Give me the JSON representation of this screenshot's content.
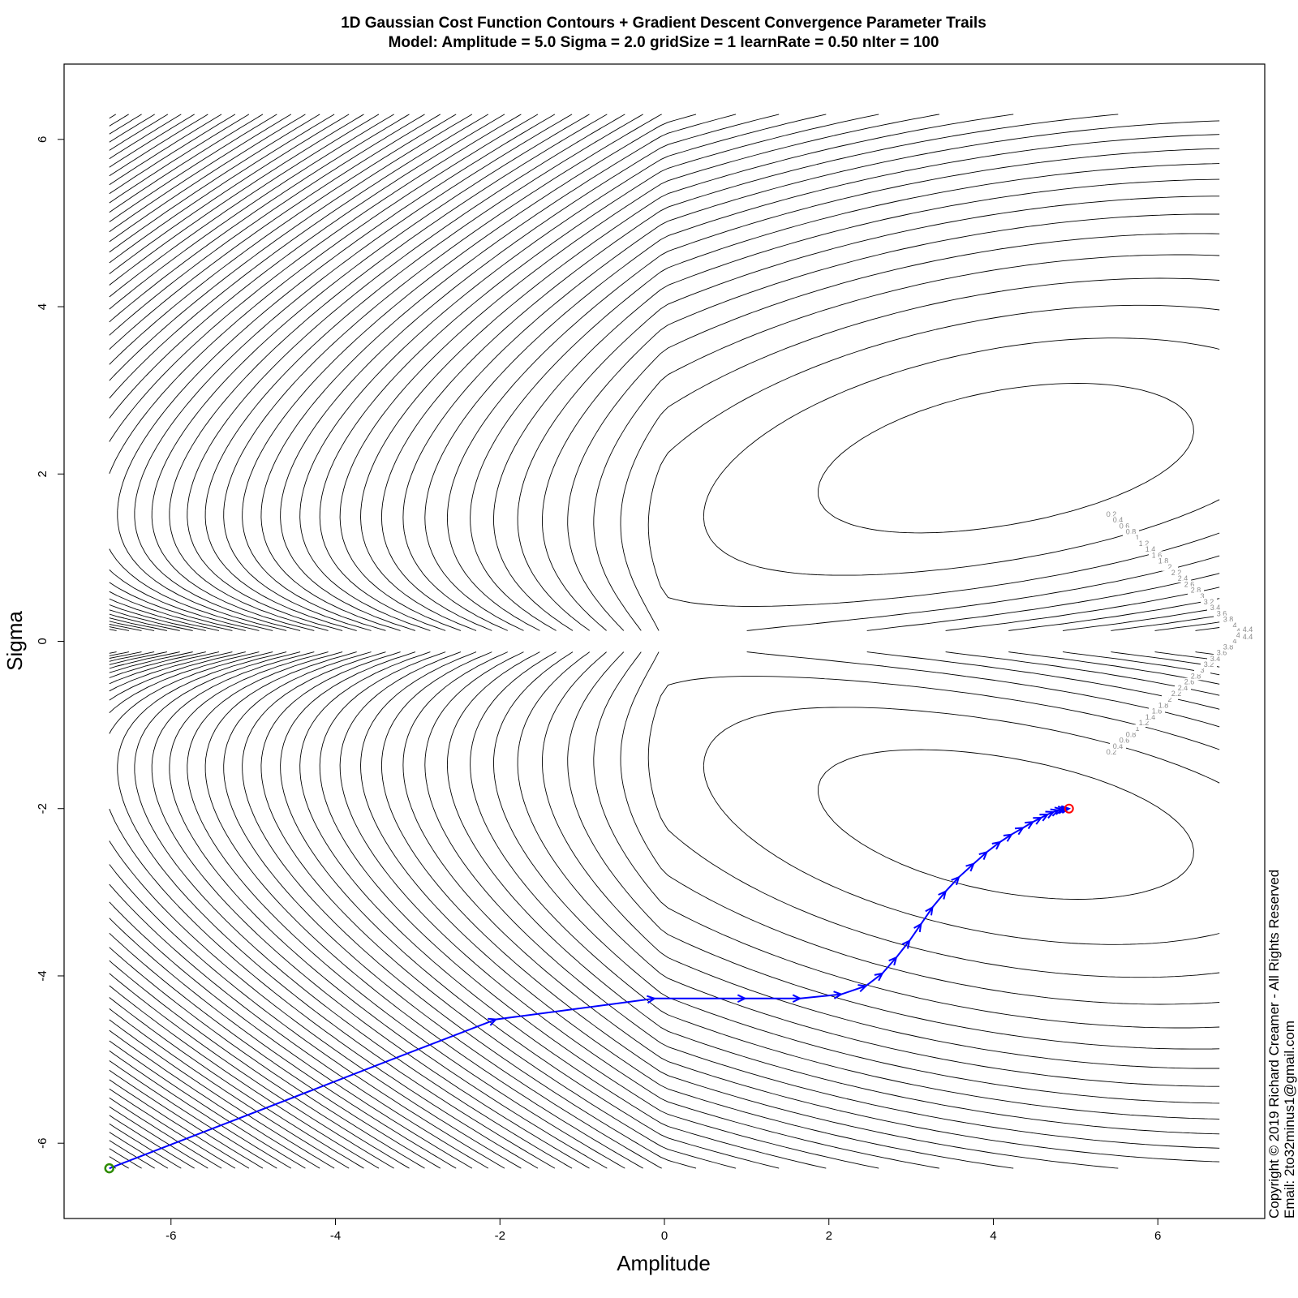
{
  "chart_data": {
    "type": "contour",
    "title": "1D Gaussian Cost Function Contours + Gradient Descent Convergence Parameter Trails",
    "subtitle": "Model: Amplitude = 5.0  Sigma = 2.0  gridSize = 1  learnRate = 0.50 nIter = 100",
    "xlabel": "Amplitude",
    "ylabel": "Sigma",
    "xlim": [
      -7.3,
      7.3
    ],
    "ylim": [
      -6.9,
      6.9
    ],
    "x_ticks": [
      -6,
      -4,
      -2,
      0,
      2,
      4,
      6
    ],
    "y_ticks": [
      -6,
      -4,
      -2,
      0,
      2,
      4,
      6
    ],
    "grid_range": {
      "amplitude": [
        -6.75,
        6.75
      ],
      "sigma": [
        -6.3,
        6.3
      ]
    },
    "contour_levels": [
      "0.2",
      "0.4",
      "0.6",
      "0.8",
      "1",
      "1.2",
      "1.4",
      "1.6",
      "1.8",
      "2",
      "2.2",
      "2.4",
      "2.6",
      "2.8",
      "3",
      "3.2",
      "3.4",
      "3.6",
      "3.8",
      "4",
      "4.2",
      "4.4"
    ],
    "minima": [
      {
        "amplitude": 5.0,
        "sigma": 2.0
      },
      {
        "amplitude": 5.0,
        "sigma": -2.0
      }
    ],
    "trail": {
      "color": "#0000ff",
      "points": [
        [
          -6.75,
          -6.3
        ],
        [
          -2.05,
          -4.52
        ],
        [
          -0.12,
          -4.27
        ],
        [
          0.98,
          -4.27
        ],
        [
          1.65,
          -4.27
        ],
        [
          2.15,
          -4.22
        ],
        [
          2.45,
          -4.12
        ],
        [
          2.65,
          -3.97
        ],
        [
          2.82,
          -3.78
        ],
        [
          2.98,
          -3.58
        ],
        [
          3.12,
          -3.38
        ],
        [
          3.26,
          -3.18
        ],
        [
          3.42,
          -2.99
        ],
        [
          3.58,
          -2.82
        ],
        [
          3.76,
          -2.66
        ],
        [
          3.92,
          -2.52
        ],
        [
          4.08,
          -2.4
        ],
        [
          4.22,
          -2.31
        ],
        [
          4.36,
          -2.23
        ],
        [
          4.48,
          -2.16
        ],
        [
          4.58,
          -2.11
        ],
        [
          4.66,
          -2.07
        ],
        [
          4.73,
          -2.04
        ],
        [
          4.79,
          -2.02
        ],
        [
          4.84,
          -2.01
        ],
        [
          4.88,
          -2.005
        ],
        [
          4.92,
          -2.0
        ]
      ]
    },
    "start_point": {
      "amplitude": -6.75,
      "sigma": -6.3,
      "color": "#2e8b00"
    },
    "end_point": {
      "amplitude": 4.92,
      "sigma": -2.0,
      "color": "#ff0000"
    }
  },
  "copyright": {
    "line1": "Copyright © 2019 Richard Creamer - All Rights Reserved",
    "line2": "Email: 2to32minus1@gmail.com"
  }
}
